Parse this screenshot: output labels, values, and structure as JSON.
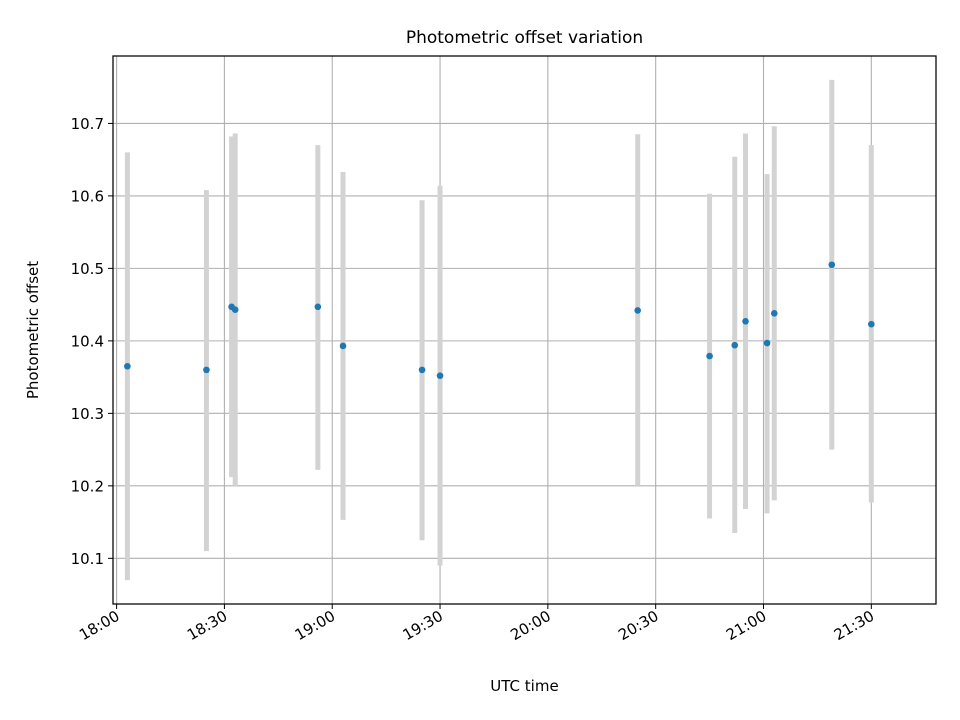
{
  "chart_data": {
    "type": "scatter",
    "title": "Photometric offset variation",
    "xlabel": "UTC time",
    "ylabel": "Photometric offset",
    "xlim": [
      "17:59",
      "21:48"
    ],
    "ylim": [
      10.037,
      10.793
    ],
    "x_ticks": [
      "18:00",
      "18:30",
      "19:00",
      "19:30",
      "20:00",
      "20:30",
      "21:00",
      "21:30"
    ],
    "y_ticks": [
      "10.1",
      "10.2",
      "10.3",
      "10.4",
      "10.5",
      "10.6",
      "10.7"
    ],
    "grid": true,
    "marker_color": "#1f77b4",
    "errorbar_color": "#d3d3d3",
    "points": [
      {
        "x": "18:03",
        "y": 10.365,
        "ylow": 10.07,
        "yhigh": 10.66
      },
      {
        "x": "18:25",
        "y": 10.36,
        "ylow": 10.11,
        "yhigh": 10.608
      },
      {
        "x": "18:32",
        "y": 10.447,
        "ylow": 10.212,
        "yhigh": 10.682
      },
      {
        "x": "18:33",
        "y": 10.443,
        "ylow": 10.2,
        "yhigh": 10.686
      },
      {
        "x": "18:56",
        "y": 10.447,
        "ylow": 10.222,
        "yhigh": 10.67
      },
      {
        "x": "19:03",
        "y": 10.393,
        "ylow": 10.153,
        "yhigh": 10.633
      },
      {
        "x": "19:25",
        "y": 10.36,
        "ylow": 10.125,
        "yhigh": 10.594
      },
      {
        "x": "19:30",
        "y": 10.352,
        "ylow": 10.09,
        "yhigh": 10.614
      },
      {
        "x": "20:25",
        "y": 10.442,
        "ylow": 10.2,
        "yhigh": 10.685
      },
      {
        "x": "20:45",
        "y": 10.379,
        "ylow": 10.155,
        "yhigh": 10.603
      },
      {
        "x": "20:52",
        "y": 10.394,
        "ylow": 10.135,
        "yhigh": 10.654
      },
      {
        "x": "20:55",
        "y": 10.427,
        "ylow": 10.168,
        "yhigh": 10.686
      },
      {
        "x": "21:01",
        "y": 10.397,
        "ylow": 10.162,
        "yhigh": 10.63
      },
      {
        "x": "21:03",
        "y": 10.438,
        "ylow": 10.18,
        "yhigh": 10.696
      },
      {
        "x": "21:19",
        "y": 10.505,
        "ylow": 10.25,
        "yhigh": 10.76
      },
      {
        "x": "21:30",
        "y": 10.423,
        "ylow": 10.177,
        "yhigh": 10.67
      }
    ]
  }
}
